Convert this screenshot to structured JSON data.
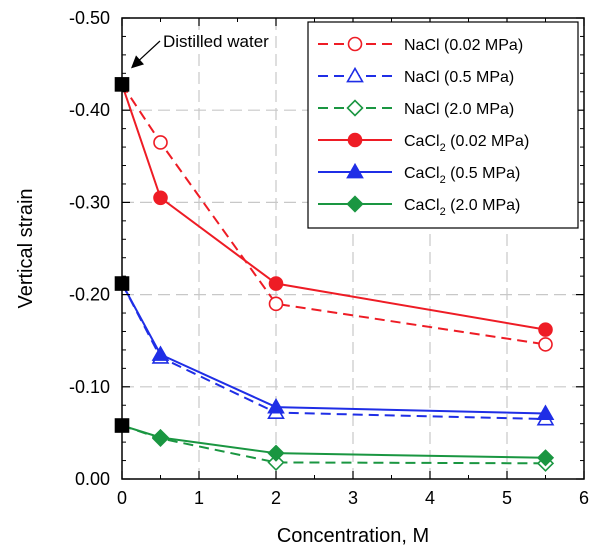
{
  "chart_data": {
    "type": "line",
    "title": "",
    "xlabel": "Concentration, M",
    "ylabel": "Vertical strain",
    "xlim": [
      0,
      6
    ],
    "ylim": [
      0,
      -0.5
    ],
    "y_axis_inverted": true,
    "x_ticks": [
      0,
      1,
      2,
      3,
      4,
      5,
      6
    ],
    "x_tick_labels": [
      "0",
      "1",
      "2",
      "3",
      "4",
      "5",
      "6"
    ],
    "y_ticks": [
      0,
      -0.1,
      -0.2,
      -0.3,
      -0.4,
      -0.5
    ],
    "y_tick_labels": [
      "0.00",
      "-0.10",
      "-0.20",
      "-0.30",
      "-0.40",
      "-0.50"
    ],
    "grid": true,
    "legend_position": "top-right",
    "annotation": {
      "text": "Distilled water",
      "x": 0,
      "y": -0.428
    },
    "reference_points": {
      "marker": "square",
      "color": "#000000",
      "x": [
        0,
        0,
        0
      ],
      "y": [
        -0.428,
        -0.212,
        -0.058
      ]
    },
    "series": [
      {
        "name": "NaCl (0.02 MPa)",
        "color": "#ee1c25",
        "line_style": "dashed",
        "marker": "circle",
        "marker_fill": "open",
        "x": [
          0,
          0.5,
          2,
          5.5
        ],
        "y": [
          -0.428,
          -0.365,
          -0.19,
          -0.146
        ]
      },
      {
        "name": "NaCl (0.5 MPa)",
        "color": "#1f2ee6",
        "line_style": "dashed",
        "marker": "triangle",
        "marker_fill": "open",
        "x": [
          0,
          0.5,
          2,
          5.5
        ],
        "y": [
          -0.212,
          -0.132,
          -0.072,
          -0.065
        ]
      },
      {
        "name": "NaCl (2.0 MPa)",
        "color": "#1a9641",
        "line_style": "dashed",
        "marker": "diamond",
        "marker_fill": "open",
        "x": [
          0,
          0.5,
          2,
          5.5
        ],
        "y": [
          -0.058,
          -0.044,
          -0.018,
          -0.017
        ]
      },
      {
        "name": "CaCl",
        "name_subscript": "2",
        "name_suffix": " (0.02 MPa)",
        "color": "#ee1c25",
        "line_style": "solid",
        "marker": "circle",
        "marker_fill": "filled",
        "x": [
          0,
          0.5,
          2,
          5.5
        ],
        "y": [
          -0.428,
          -0.305,
          -0.212,
          -0.162
        ]
      },
      {
        "name": "CaCl",
        "name_subscript": "2",
        "name_suffix": " (0.5 MPa)",
        "color": "#1f2ee6",
        "line_style": "solid",
        "marker": "triangle",
        "marker_fill": "filled",
        "x": [
          0,
          0.5,
          2,
          5.5
        ],
        "y": [
          -0.212,
          -0.135,
          -0.078,
          -0.071
        ]
      },
      {
        "name": "CaCl",
        "name_subscript": "2",
        "name_suffix": " (2.0 MPa)",
        "color": "#1a9641",
        "line_style": "solid",
        "marker": "diamond",
        "marker_fill": "filled",
        "x": [
          0,
          0.5,
          2,
          5.5
        ],
        "y": [
          -0.058,
          -0.045,
          -0.028,
          -0.023
        ]
      }
    ]
  }
}
